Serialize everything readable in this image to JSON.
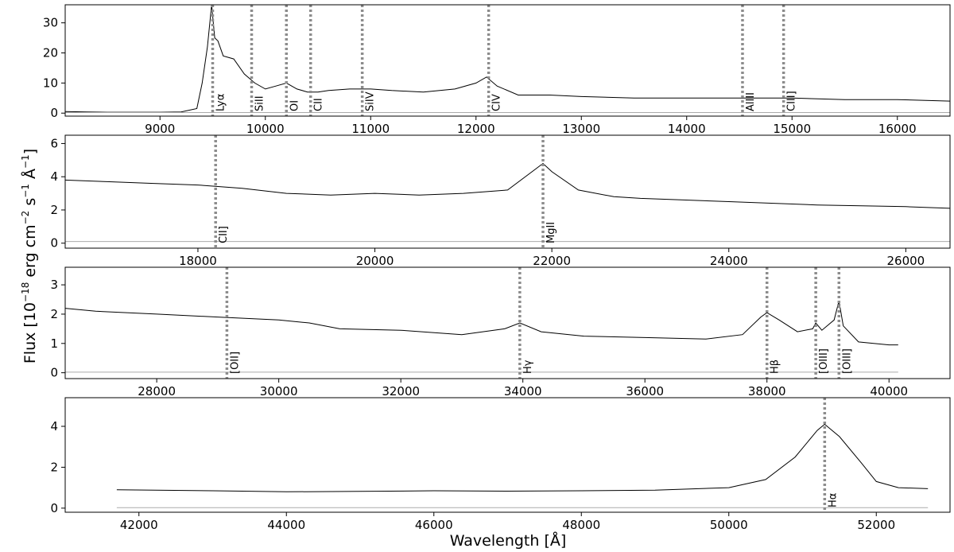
{
  "figure": {
    "xlabel": "Wavelength [Å]",
    "ylabel_parts": [
      "Flux [10",
      "−18",
      " erg cm",
      "−2",
      " s",
      "−1",
      " Å",
      "−1",
      "]"
    ]
  },
  "colors": {
    "spectrum": "#000000",
    "error": "#aaaaaa",
    "marker": "#8c8c8c"
  },
  "chart_data": [
    {
      "type": "line",
      "xlim": [
        8100,
        16500
      ],
      "ylim": [
        -1,
        36
      ],
      "xticks": [
        9000,
        10000,
        11000,
        12000,
        13000,
        14000,
        15000,
        16000
      ],
      "yticks": [
        0,
        10,
        20,
        30
      ],
      "lines": [
        {
          "label": "Lyα",
          "x": 9500
        },
        {
          "label": "SiII",
          "x": 9870
        },
        {
          "label": "OI",
          "x": 10200
        },
        {
          "label": "CII",
          "x": 10430
        },
        {
          "label": "SiIV",
          "x": 10920
        },
        {
          "label": "CIV",
          "x": 12120
        },
        {
          "label": "AlIII",
          "x": 14530
        },
        {
          "label": "CIII]",
          "x": 14920
        }
      ],
      "series": [
        {
          "points": [
            [
              8100,
              0.5
            ],
            [
              8300,
              0.4
            ],
            [
              8500,
              0.3
            ],
            [
              8800,
              0.3
            ],
            [
              9000,
              0.3
            ],
            [
              9200,
              0.4
            ],
            [
              9350,
              1.5
            ],
            [
              9400,
              10
            ],
            [
              9450,
              22
            ],
            [
              9490,
              36
            ],
            [
              9520,
              25
            ],
            [
              9550,
              24
            ],
            [
              9600,
              19
            ],
            [
              9700,
              18
            ],
            [
              9800,
              13
            ],
            [
              9900,
              10
            ],
            [
              10000,
              8
            ],
            [
              10100,
              9
            ],
            [
              10200,
              10
            ],
            [
              10300,
              8
            ],
            [
              10400,
              7
            ],
            [
              10500,
              7
            ],
            [
              10600,
              7.5
            ],
            [
              10800,
              8
            ],
            [
              11000,
              8
            ],
            [
              11200,
              7.5
            ],
            [
              11500,
              7
            ],
            [
              11800,
              8
            ],
            [
              12000,
              10
            ],
            [
              12100,
              12
            ],
            [
              12200,
              9
            ],
            [
              12400,
              6
            ],
            [
              12700,
              6
            ],
            [
              13000,
              5.5
            ],
            [
              13500,
              5
            ],
            [
              14000,
              5
            ],
            [
              14500,
              5
            ],
            [
              14800,
              5
            ],
            [
              15000,
              5
            ],
            [
              15500,
              4.5
            ],
            [
              16000,
              4.5
            ],
            [
              16500,
              4
            ]
          ]
        },
        {
          "points": [
            [
              8100,
              0.2
            ],
            [
              16500,
              0.2
            ]
          ]
        }
      ]
    },
    {
      "type": "line",
      "xlim": [
        16500,
        26500
      ],
      "ylim": [
        -0.3,
        6.5
      ],
      "xticks": [
        18000,
        20000,
        22000,
        24000,
        26000
      ],
      "yticks": [
        0,
        2,
        4,
        6
      ],
      "lines": [
        {
          "label": "CII]",
          "x": 18200
        },
        {
          "label": "MgII",
          "x": 21900
        }
      ],
      "series": [
        {
          "points": [
            [
              16500,
              3.8
            ],
            [
              17000,
              3.7
            ],
            [
              17500,
              3.6
            ],
            [
              18000,
              3.5
            ],
            [
              18500,
              3.3
            ],
            [
              19000,
              3.0
            ],
            [
              19500,
              2.9
            ],
            [
              20000,
              3.0
            ],
            [
              20500,
              2.9
            ],
            [
              21000,
              3.0
            ],
            [
              21500,
              3.2
            ],
            [
              21800,
              4.4
            ],
            [
              21900,
              4.8
            ],
            [
              22000,
              4.3
            ],
            [
              22300,
              3.2
            ],
            [
              22700,
              2.8
            ],
            [
              23000,
              2.7
            ],
            [
              24000,
              2.5
            ],
            [
              25000,
              2.3
            ],
            [
              26000,
              2.2
            ],
            [
              26500,
              2.1
            ]
          ]
        },
        {
          "points": [
            [
              16500,
              0.1
            ],
            [
              26500,
              0.1
            ]
          ]
        }
      ]
    },
    {
      "type": "line",
      "xlim": [
        26500,
        41000
      ],
      "ylim": [
        -0.2,
        3.6
      ],
      "xticks": [
        28000,
        30000,
        32000,
        34000,
        36000,
        38000,
        40000
      ],
      "yticks": [
        0,
        1,
        2,
        3
      ],
      "lines": [
        {
          "label": "[OII]",
          "x": 29150
        },
        {
          "label": "Hγ",
          "x": 33950
        },
        {
          "label": "Hβ",
          "x": 38000
        },
        {
          "label": "[OIII]",
          "x": 38800
        },
        {
          "label": "[OIII]",
          "x": 39180
        }
      ],
      "series": [
        {
          "points": [
            [
              26500,
              2.2
            ],
            [
              27000,
              2.1
            ],
            [
              28000,
              2.0
            ],
            [
              29000,
              1.9
            ],
            [
              30000,
              1.8
            ],
            [
              30500,
              1.7
            ],
            [
              31000,
              1.5
            ],
            [
              32000,
              1.45
            ],
            [
              33000,
              1.3
            ],
            [
              33700,
              1.5
            ],
            [
              33950,
              1.7
            ],
            [
              34300,
              1.4
            ],
            [
              35000,
              1.25
            ],
            [
              36000,
              1.2
            ],
            [
              37000,
              1.15
            ],
            [
              37600,
              1.3
            ],
            [
              37900,
              1.9
            ],
            [
              38000,
              2.05
            ],
            [
              38200,
              1.8
            ],
            [
              38500,
              1.4
            ],
            [
              38750,
              1.5
            ],
            [
              38800,
              1.7
            ],
            [
              38900,
              1.45
            ],
            [
              39100,
              1.8
            ],
            [
              39180,
              2.45
            ],
            [
              39250,
              1.6
            ],
            [
              39500,
              1.05
            ],
            [
              40000,
              0.95
            ],
            [
              40150,
              0.95
            ]
          ]
        },
        {
          "points": [
            [
              26500,
              0.02
            ],
            [
              40150,
              0.02
            ]
          ]
        }
      ]
    },
    {
      "type": "line",
      "xlim": [
        41000,
        53000
      ],
      "ylim": [
        -0.2,
        5.4
      ],
      "xticks": [
        42000,
        44000,
        46000,
        48000,
        50000,
        52000
      ],
      "yticks": [
        0,
        2,
        4
      ],
      "lines": [
        {
          "label": "Hα",
          "x": 51300
        }
      ],
      "series": [
        {
          "points": [
            [
              41700,
              0.9
            ],
            [
              43000,
              0.85
            ],
            [
              44000,
              0.8
            ],
            [
              45000,
              0.82
            ],
            [
              46000,
              0.85
            ],
            [
              47000,
              0.83
            ],
            [
              48000,
              0.85
            ],
            [
              49000,
              0.88
            ],
            [
              50000,
              1.0
            ],
            [
              50500,
              1.4
            ],
            [
              50900,
              2.5
            ],
            [
              51200,
              3.8
            ],
            [
              51300,
              4.1
            ],
            [
              51500,
              3.5
            ],
            [
              51800,
              2.2
            ],
            [
              52000,
              1.3
            ],
            [
              52300,
              1.0
            ],
            [
              52700,
              0.95
            ]
          ]
        },
        {
          "points": [
            [
              41700,
              0.02
            ],
            [
              52700,
              0.02
            ]
          ]
        }
      ]
    }
  ]
}
